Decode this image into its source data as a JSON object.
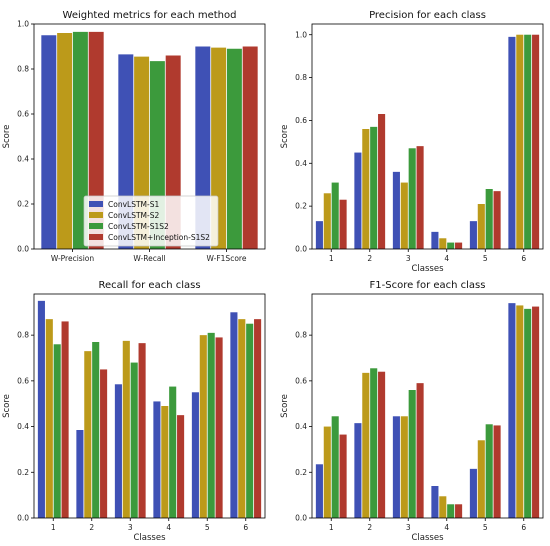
{
  "legend": {
    "entries": [
      "ConvLSTM-S1",
      "ConvLSTM-S2",
      "ConvLSTM-S1S2",
      "ConvLSTM+Inception-S1S2"
    ],
    "colors": [
      "#3f51b5",
      "#bc9a1a",
      "#3c9a3c",
      "#b03a2e"
    ]
  },
  "chart_data": [
    {
      "type": "bar",
      "title": "Weighted metrics for each method",
      "xlabel": "",
      "ylabel": "Score",
      "categories": [
        "W-Precision",
        "W-Recall",
        "W-F1Score"
      ],
      "ylim": [
        0,
        1.0
      ],
      "yticks": [
        "0.0",
        "0.2",
        "0.4",
        "0.6",
        "0.8",
        "1.0"
      ],
      "legend_position": "lower-left",
      "series": [
        {
          "name": "ConvLSTM-S1",
          "values": [
            0.95,
            0.865,
            0.9
          ]
        },
        {
          "name": "ConvLSTM-S2",
          "values": [
            0.96,
            0.855,
            0.895
          ]
        },
        {
          "name": "ConvLSTM-S1S2",
          "values": [
            0.965,
            0.835,
            0.89
          ]
        },
        {
          "name": "ConvLSTM+Inception-S1S2",
          "values": [
            0.965,
            0.86,
            0.9
          ]
        }
      ]
    },
    {
      "type": "bar",
      "title": "Precision for each class",
      "xlabel": "Classes",
      "ylabel": "Score",
      "categories": [
        "1",
        "2",
        "3",
        "4",
        "5",
        "6"
      ],
      "ylim": [
        0,
        1.05
      ],
      "yticks": [
        "0.0",
        "0.2",
        "0.4",
        "0.6",
        "0.8",
        "1.0"
      ],
      "series": [
        {
          "name": "ConvLSTM-S1",
          "values": [
            0.13,
            0.45,
            0.36,
            0.08,
            0.13,
            0.99
          ]
        },
        {
          "name": "ConvLSTM-S2",
          "values": [
            0.26,
            0.56,
            0.31,
            0.05,
            0.21,
            1.0
          ]
        },
        {
          "name": "ConvLSTM-S1S2",
          "values": [
            0.31,
            0.57,
            0.47,
            0.03,
            0.28,
            1.0
          ]
        },
        {
          "name": "ConvLSTM+Inception-S1S2",
          "values": [
            0.23,
            0.63,
            0.48,
            0.03,
            0.27,
            1.0
          ]
        }
      ]
    },
    {
      "type": "bar",
      "title": "Recall for each class",
      "xlabel": "Classes",
      "ylabel": "Score",
      "categories": [
        "1",
        "2",
        "3",
        "4",
        "5",
        "6"
      ],
      "ylim": [
        0,
        0.98
      ],
      "yticks": [
        "0.0",
        "0.2",
        "0.4",
        "0.6",
        "0.8"
      ],
      "series": [
        {
          "name": "ConvLSTM-S1",
          "values": [
            0.95,
            0.385,
            0.585,
            0.51,
            0.55,
            0.9
          ]
        },
        {
          "name": "ConvLSTM-S2",
          "values": [
            0.87,
            0.73,
            0.775,
            0.49,
            0.8,
            0.87
          ]
        },
        {
          "name": "ConvLSTM-S1S2",
          "values": [
            0.76,
            0.77,
            0.68,
            0.575,
            0.81,
            0.85
          ]
        },
        {
          "name": "ConvLSTM+Inception-S1S2",
          "values": [
            0.86,
            0.65,
            0.765,
            0.45,
            0.79,
            0.87
          ]
        }
      ]
    },
    {
      "type": "bar",
      "title": "F1-Score for each class",
      "xlabel": "Classes",
      "ylabel": "Score",
      "categories": [
        "1",
        "2",
        "3",
        "4",
        "5",
        "6"
      ],
      "ylim": [
        0,
        0.98
      ],
      "yticks": [
        "0.0",
        "0.2",
        "0.4",
        "0.6",
        "0.8"
      ],
      "series": [
        {
          "name": "ConvLSTM-S1",
          "values": [
            0.235,
            0.415,
            0.445,
            0.14,
            0.215,
            0.94
          ]
        },
        {
          "name": "ConvLSTM-S2",
          "values": [
            0.4,
            0.635,
            0.445,
            0.095,
            0.34,
            0.93
          ]
        },
        {
          "name": "ConvLSTM-S1S2",
          "values": [
            0.445,
            0.655,
            0.56,
            0.06,
            0.41,
            0.915
          ]
        },
        {
          "name": "ConvLSTM+Inception-S1S2",
          "values": [
            0.365,
            0.64,
            0.59,
            0.06,
            0.405,
            0.925
          ]
        }
      ]
    }
  ]
}
